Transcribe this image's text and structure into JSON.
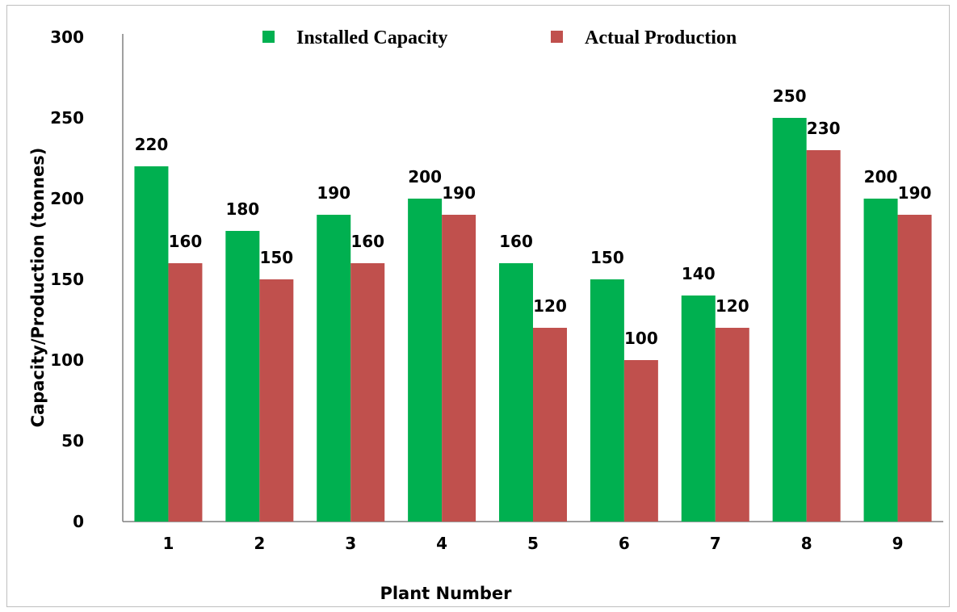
{
  "chart_data": {
    "type": "bar",
    "categories": [
      "1",
      "2",
      "3",
      "4",
      "5",
      "6",
      "7",
      "8",
      "9"
    ],
    "series": [
      {
        "name": "Installed Capacity",
        "values": [
          220,
          180,
          190,
          200,
          160,
          150,
          140,
          250,
          200
        ],
        "color": "#00b050"
      },
      {
        "name": "Actual Production",
        "values": [
          160,
          150,
          160,
          190,
          120,
          100,
          120,
          230,
          190
        ],
        "color": "#c0504d"
      }
    ],
    "xlabel": "Plant Number",
    "ylabel": "Capacity/Production (tonnes)",
    "ylim": [
      0,
      300
    ],
    "yticks": [
      0,
      50,
      100,
      150,
      200,
      250,
      300
    ],
    "grid": false,
    "legend_position": "top-center",
    "data_labels": true
  }
}
